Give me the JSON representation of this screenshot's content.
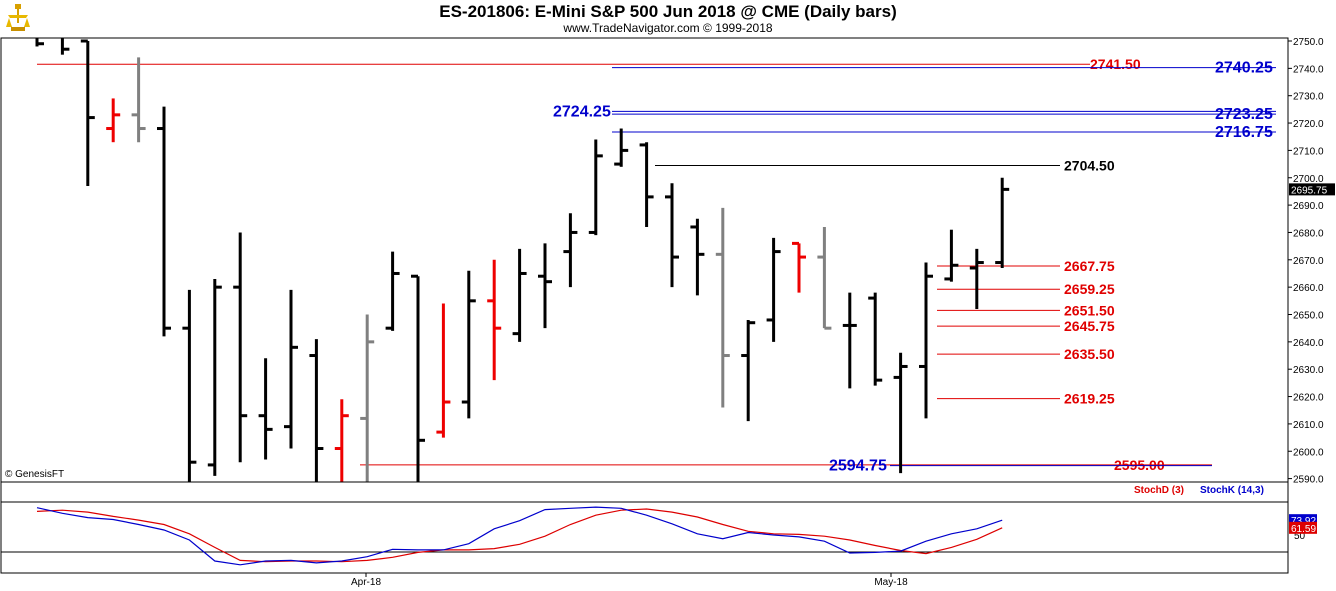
{
  "header": {
    "title": "ES-201806:  E-Mini S&P 500 Jun 2018 @ CME  (Daily bars)",
    "subtitle": "www.TradeNavigator.com © 1999-2018"
  },
  "copyright": "© GenesisFT",
  "colors": {
    "up_bar": "#000000",
    "down_bar": "#000000",
    "red_bar": "#ee0000",
    "gray_bar": "#808080",
    "blue_level": "#0000cc",
    "red_level": "#e00000",
    "black_level": "#000000",
    "stoch_d": "#dd0000",
    "stoch_k": "#0000cc"
  },
  "chart_data": [
    {
      "type": "ohlc",
      "title": "ES-201806:  E-Mini S&P 500 Jun 2018 @ CME  (Daily bars)",
      "y_ticks": [
        2590,
        2600,
        2610,
        2620,
        2630,
        2640,
        2650,
        2660,
        2670,
        2680,
        2690,
        2700,
        2710,
        2720,
        2730,
        2740,
        2750
      ],
      "ylim": [
        2586,
        2752
      ],
      "last_price": "2695.75",
      "x_labels": [
        "Apr-18",
        "May-18"
      ],
      "bars": [
        {
          "o": 2752,
          "h": 2752,
          "l": 2748,
          "c": 2749,
          "color": "black"
        },
        {
          "o": 2752,
          "h": 2752,
          "l": 2745,
          "c": 2747,
          "color": "black"
        },
        {
          "o": 2750,
          "h": 2750,
          "l": 2697,
          "c": 2722,
          "color": "black"
        },
        {
          "o": 2718,
          "h": 2729,
          "l": 2713,
          "c": 2723,
          "color": "red"
        },
        {
          "o": 2723,
          "h": 2744,
          "l": 2713,
          "c": 2718,
          "color": "gray"
        },
        {
          "o": 2718,
          "h": 2726,
          "l": 2642,
          "c": 2645,
          "color": "black"
        },
        {
          "o": 2645,
          "h": 2659,
          "l": 2586,
          "c": 2596,
          "color": "black"
        },
        {
          "o": 2595,
          "h": 2663,
          "l": 2591,
          "c": 2660,
          "color": "black"
        },
        {
          "o": 2660,
          "h": 2680,
          "l": 2596,
          "c": 2613,
          "color": "black"
        },
        {
          "o": 2613,
          "h": 2634,
          "l": 2597,
          "c": 2608,
          "color": "black"
        },
        {
          "o": 2609,
          "h": 2659,
          "l": 2601,
          "c": 2638,
          "color": "black"
        },
        {
          "o": 2635,
          "h": 2641,
          "l": 2586,
          "c": 2601,
          "color": "black"
        },
        {
          "o": 2601,
          "h": 2619,
          "l": 2586,
          "c": 2613,
          "color": "red"
        },
        {
          "o": 2612,
          "h": 2650,
          "l": 2586,
          "c": 2640,
          "color": "gray"
        },
        {
          "o": 2645,
          "h": 2673,
          "l": 2644,
          "c": 2665,
          "color": "black"
        },
        {
          "o": 2664,
          "h": 2664,
          "l": 2586,
          "c": 2604,
          "color": "black"
        },
        {
          "o": 2607,
          "h": 2654,
          "l": 2605,
          "c": 2618,
          "color": "red"
        },
        {
          "o": 2618,
          "h": 2666,
          "l": 2612,
          "c": 2655,
          "color": "black"
        },
        {
          "o": 2655,
          "h": 2670,
          "l": 2626,
          "c": 2645,
          "color": "red"
        },
        {
          "o": 2643,
          "h": 2674,
          "l": 2640,
          "c": 2665,
          "color": "black"
        },
        {
          "o": 2664,
          "h": 2676,
          "l": 2645,
          "c": 2662,
          "color": "black"
        },
        {
          "o": 2673,
          "h": 2687,
          "l": 2660,
          "c": 2680,
          "color": "black"
        },
        {
          "o": 2680,
          "h": 2714,
          "l": 2679,
          "c": 2708,
          "color": "black"
        },
        {
          "o": 2705,
          "h": 2718,
          "l": 2704,
          "c": 2710,
          "color": "black"
        },
        {
          "o": 2712,
          "h": 2713,
          "l": 2682,
          "c": 2693,
          "color": "black"
        },
        {
          "o": 2693,
          "h": 2698,
          "l": 2660,
          "c": 2671,
          "color": "black"
        },
        {
          "o": 2682,
          "h": 2685,
          "l": 2657,
          "c": 2672,
          "color": "black"
        },
        {
          "o": 2672,
          "h": 2689,
          "l": 2616,
          "c": 2635,
          "color": "gray"
        },
        {
          "o": 2635,
          "h": 2648,
          "l": 2611,
          "c": 2647,
          "color": "black"
        },
        {
          "o": 2648,
          "h": 2678,
          "l": 2640,
          "c": 2673,
          "color": "black"
        },
        {
          "o": 2676,
          "h": 2676,
          "l": 2658,
          "c": 2671,
          "color": "red"
        },
        {
          "o": 2671,
          "h": 2682,
          "l": 2645,
          "c": 2645,
          "color": "gray"
        },
        {
          "o": 2646,
          "h": 2658,
          "l": 2623,
          "c": 2646,
          "color": "black"
        },
        {
          "o": 2656,
          "h": 2658,
          "l": 2624,
          "c": 2626,
          "color": "black"
        },
        {
          "o": 2627,
          "h": 2636,
          "l": 2592,
          "c": 2631,
          "color": "black"
        },
        {
          "o": 2631,
          "h": 2669,
          "l": 2612,
          "c": 2664,
          "color": "black"
        },
        {
          "o": 2663,
          "h": 2681,
          "l": 2662,
          "c": 2668,
          "color": "black"
        },
        {
          "o": 2667,
          "h": 2674,
          "l": 2652,
          "c": 2669,
          "color": "black"
        },
        {
          "o": 2669,
          "h": 2700,
          "l": 2667,
          "c": 2695.75,
          "color": "black"
        }
      ],
      "levels": [
        {
          "value": 2741.5,
          "label": "2741.50",
          "color": "red"
        },
        {
          "value": 2740.25,
          "label": "2740.25",
          "color": "blue"
        },
        {
          "value": 2724.25,
          "label": "2724.25",
          "color": "blue"
        },
        {
          "value": 2723.25,
          "label": "2723.25",
          "color": "blue"
        },
        {
          "value": 2716.75,
          "label": "2716.75",
          "color": "blue"
        },
        {
          "value": 2704.5,
          "label": "2704.50",
          "color": "black"
        },
        {
          "value": 2667.75,
          "label": "2667.75",
          "color": "red"
        },
        {
          "value": 2659.25,
          "label": "2659.25",
          "color": "red"
        },
        {
          "value": 2651.5,
          "label": "2651.50",
          "color": "red"
        },
        {
          "value": 2645.75,
          "label": "2645.75",
          "color": "red"
        },
        {
          "value": 2635.5,
          "label": "2635.50",
          "color": "red"
        },
        {
          "value": 2619.25,
          "label": "2619.25",
          "color": "red"
        },
        {
          "value": 2595.0,
          "label": "2595.00",
          "color": "red"
        },
        {
          "value": 2594.75,
          "label": "2594.75",
          "color": "blue"
        }
      ]
    },
    {
      "type": "line",
      "legend": [
        "StochD (3)",
        "StochK (14,3)"
      ],
      "y_ticks": [
        50
      ],
      "ylim": [
        0,
        100
      ],
      "last_values": {
        "k": "73.92",
        "d": "61.59"
      },
      "series": [
        {
          "name": "StochD (3)",
          "color": "red",
          "values": [
            [
              0,
              88
            ],
            [
              1,
              90
            ],
            [
              2,
              87
            ],
            [
              3,
              80
            ],
            [
              4,
              74
            ],
            [
              5,
              67
            ],
            [
              6,
              52
            ],
            [
              7,
              30
            ],
            [
              8,
              9
            ],
            [
              9,
              7
            ],
            [
              10,
              8
            ],
            [
              11,
              8
            ],
            [
              12,
              7
            ],
            [
              13,
              9
            ],
            [
              14,
              14
            ],
            [
              15,
              22
            ],
            [
              16,
              26
            ],
            [
              17,
              26
            ],
            [
              18,
              28
            ],
            [
              19,
              35
            ],
            [
              20,
              48
            ],
            [
              21,
              67
            ],
            [
              22,
              82
            ],
            [
              23,
              90
            ],
            [
              24,
              92
            ],
            [
              25,
              87
            ],
            [
              26,
              79
            ],
            [
              27,
              67
            ],
            [
              28,
              56
            ],
            [
              29,
              52
            ],
            [
              30,
              51
            ],
            [
              31,
              48
            ],
            [
              32,
              42
            ],
            [
              33,
              33
            ],
            [
              34,
              25
            ],
            [
              35,
              20
            ],
            [
              36,
              30
            ],
            [
              37,
              43
            ],
            [
              38,
              61.59
            ]
          ]
        },
        {
          "name": "StochK (14,3)",
          "color": "blue",
          "values": [
            [
              0,
              94
            ],
            [
              1,
              85
            ],
            [
              2,
              78
            ],
            [
              3,
              75
            ],
            [
              4,
              67
            ],
            [
              5,
              58
            ],
            [
              6,
              42
            ],
            [
              7,
              8
            ],
            [
              8,
              2
            ],
            [
              9,
              8
            ],
            [
              10,
              9
            ],
            [
              11,
              5
            ],
            [
              12,
              8
            ],
            [
              13,
              15
            ],
            [
              14,
              27
            ],
            [
              15,
              26
            ],
            [
              16,
              26
            ],
            [
              17,
              36
            ],
            [
              18,
              60
            ],
            [
              19,
              73
            ],
            [
              20,
              91
            ],
            [
              21,
              93
            ],
            [
              22,
              95
            ],
            [
              23,
              93
            ],
            [
              24,
              82
            ],
            [
              25,
              68
            ],
            [
              26,
              52
            ],
            [
              27,
              44
            ],
            [
              28,
              54
            ],
            [
              29,
              50
            ],
            [
              30,
              47
            ],
            [
              31,
              40
            ],
            [
              32,
              21
            ],
            [
              33,
              22
            ],
            [
              34,
              24
            ],
            [
              35,
              40
            ],
            [
              36,
              52
            ],
            [
              37,
              60
            ],
            [
              38,
              73.92
            ]
          ]
        }
      ]
    }
  ]
}
